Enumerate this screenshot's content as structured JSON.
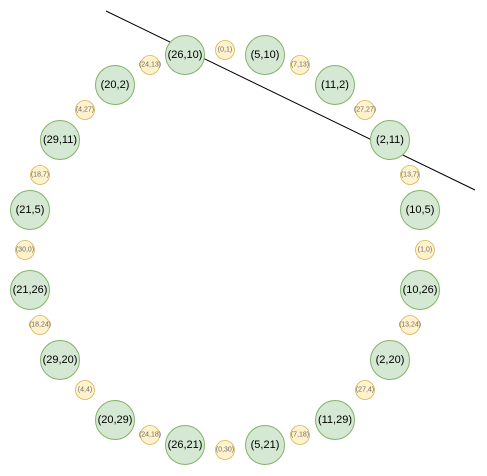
{
  "diagram": {
    "colors": {
      "big_fill": "#d5e8d4",
      "big_stroke": "#82b366",
      "small_fill": "#fff2cc",
      "small_stroke": "#d6b656"
    },
    "big_nodes": [
      {
        "label": "(26,10)"
      },
      {
        "label": "(5,10)"
      },
      {
        "label": "(11,2)"
      },
      {
        "label": "(2,11)"
      },
      {
        "label": "(10,5)"
      },
      {
        "label": "(10,26)"
      },
      {
        "label": "(2,20)"
      },
      {
        "label": "(11,29)"
      },
      {
        "label": "(5,21)"
      },
      {
        "label": "(26,21)"
      },
      {
        "label": "(20,29)"
      },
      {
        "label": "(29,20)"
      },
      {
        "label": "(21,26)"
      },
      {
        "label": "(21,5)"
      },
      {
        "label": "(29,11)"
      },
      {
        "label": "(20,2)"
      }
    ],
    "small_nodes": [
      {
        "label": "(0,1)"
      },
      {
        "label": "(7,13)"
      },
      {
        "label": "(27,27)"
      },
      {
        "label": "(13,7)"
      },
      {
        "label": "(1,0)"
      },
      {
        "label": "(13,24)"
      },
      {
        "label": "(27,4)"
      },
      {
        "label": "(7,18)"
      },
      {
        "label": "(0,30)"
      },
      {
        "label": "(24,18)"
      },
      {
        "label": "(4,4)"
      },
      {
        "label": "(18,24)"
      },
      {
        "label": "(30,0)"
      },
      {
        "label": "(18,7)"
      },
      {
        "label": "(4,27)"
      },
      {
        "label": "(24,13)"
      }
    ]
  }
}
